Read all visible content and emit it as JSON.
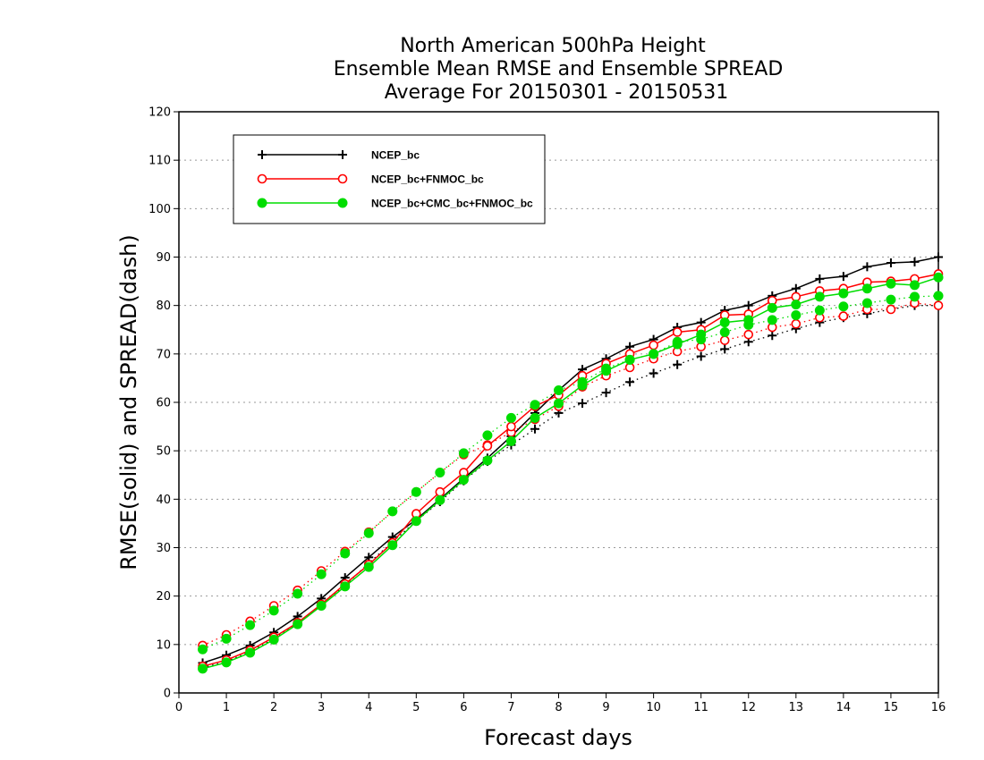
{
  "chart_data": {
    "type": "line",
    "title_lines": [
      "North American 500hPa Height",
      "Ensemble Mean RMSE and Ensemble SPREAD",
      "Average For 20150301 - 20150531"
    ],
    "xlabel": "Forecast days",
    "ylabel": "RMSE(solid) and SPREAD(dash)",
    "xlim": [
      0,
      16
    ],
    "ylim": [
      0,
      120
    ],
    "xticks": [
      0,
      1,
      2,
      3,
      4,
      5,
      6,
      7,
      8,
      9,
      10,
      11,
      12,
      13,
      14,
      15,
      16
    ],
    "yticks": [
      0,
      10,
      20,
      30,
      40,
      50,
      60,
      70,
      80,
      90,
      100,
      110,
      120
    ],
    "grid": "horizontal dotted",
    "legend_position": "top-left",
    "x": [
      0.5,
      1,
      1.5,
      2,
      2.5,
      3,
      3.5,
      4,
      4.5,
      5,
      5.5,
      6,
      6.5,
      7,
      7.5,
      8,
      8.5,
      9,
      9.5,
      10,
      10.5,
      11,
      11.5,
      12,
      12.5,
      13,
      13.5,
      14,
      14.5,
      15,
      15.5,
      16
    ],
    "series": [
      {
        "name": "NCEP_bc",
        "color": "#000000",
        "marker": "plus",
        "rmse": [
          6.2,
          7.8,
          9.8,
          12.5,
          15.8,
          19.5,
          23.8,
          28.0,
          32.2,
          35.8,
          40.0,
          44.3,
          48.5,
          53.0,
          57.8,
          62.5,
          66.8,
          69.0,
          71.5,
          73.0,
          75.5,
          76.5,
          79.0,
          80.0,
          82.0,
          83.5,
          85.5,
          86.0,
          88.0,
          88.8,
          89.0,
          90.0
        ],
        "spread": [
          5.2,
          6.5,
          8.5,
          11.2,
          14.3,
          18.0,
          22.2,
          26.8,
          31.2,
          35.5,
          39.5,
          43.8,
          47.8,
          51.2,
          54.5,
          57.8,
          59.8,
          62.0,
          64.2,
          66.0,
          67.8,
          69.5,
          71.0,
          72.5,
          73.8,
          75.2,
          76.5,
          77.5,
          78.3,
          79.2,
          80.0,
          80.0
        ]
      },
      {
        "name": "NCEP_bc+FNMOC_bc",
        "color": "#ff0000",
        "marker": "open-circle",
        "rmse": [
          5.5,
          6.8,
          8.8,
          11.5,
          14.5,
          18.3,
          22.5,
          26.5,
          31.0,
          37.0,
          41.5,
          45.5,
          51.0,
          55.0,
          59.2,
          61.5,
          65.5,
          68.0,
          70.0,
          71.8,
          74.5,
          75.0,
          78.0,
          78.2,
          81.0,
          81.8,
          83.0,
          83.5,
          84.8,
          85.0,
          85.5,
          86.5
        ],
        "spread": [
          9.8,
          12.0,
          14.8,
          18.0,
          21.2,
          25.2,
          29.2,
          33.2,
          37.5,
          41.5,
          45.5,
          49.2,
          51.2,
          53.8,
          56.5,
          59.2,
          63.2,
          65.5,
          67.2,
          69.0,
          70.5,
          71.5,
          72.8,
          74.0,
          75.5,
          76.2,
          77.5,
          77.8,
          79.2,
          79.2,
          80.5,
          80.0
        ]
      },
      {
        "name": "NCEP_bc+CMC_bc+FNMOC_bc",
        "color": "#00dd00",
        "marker": "filled-circle",
        "rmse": [
          5.0,
          6.3,
          8.3,
          11.0,
          14.2,
          18.0,
          22.0,
          26.0,
          30.5,
          35.5,
          39.8,
          44.0,
          48.0,
          52.0,
          56.8,
          59.8,
          63.5,
          66.5,
          68.8,
          70.0,
          72.0,
          74.0,
          76.5,
          77.0,
          79.5,
          80.2,
          81.8,
          82.5,
          83.5,
          84.5,
          84.2,
          85.8
        ],
        "spread": [
          9.0,
          11.2,
          14.0,
          17.0,
          20.5,
          24.5,
          28.8,
          33.0,
          37.5,
          41.5,
          45.5,
          49.5,
          53.2,
          56.8,
          59.5,
          62.5,
          64.2,
          67.0,
          68.8,
          70.0,
          72.5,
          73.0,
          74.5,
          76.0,
          77.0,
          78.0,
          79.0,
          79.8,
          80.5,
          81.2,
          81.8,
          82.0
        ]
      }
    ]
  }
}
